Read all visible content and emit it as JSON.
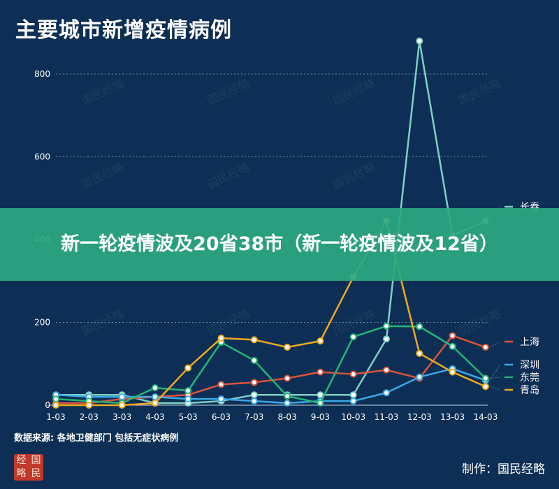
{
  "chart_data": {
    "type": "line",
    "title": "主要城市新增疫情病例",
    "categories": [
      "1-03",
      "2-03",
      "3-03",
      "4-03",
      "5-03",
      "6-03",
      "7-03",
      "8-03",
      "9-03",
      "10-03",
      "11-03",
      "12-03",
      "13-03",
      "14-03"
    ],
    "yticks": [
      0,
      200,
      400,
      600,
      800
    ],
    "ylim": [
      0,
      900
    ],
    "grid": "dashed-horizontal",
    "legend": "right",
    "series": [
      {
        "name": "长春",
        "color": "#7fcfc4",
        "values": [
          25,
          25,
          25,
          5,
          5,
          10,
          25,
          25,
          25,
          25,
          160,
          880,
          410,
          445
        ]
      },
      {
        "name": "上海",
        "color": "#d9533c",
        "values": [
          5,
          5,
          15,
          20,
          25,
          50,
          55,
          65,
          80,
          75,
          85,
          65,
          168,
          140
        ]
      },
      {
        "name": "深圳",
        "color": "#39a9e8",
        "values": [
          25,
          20,
          20,
          20,
          15,
          15,
          10,
          5,
          10,
          10,
          30,
          68,
          88,
          60
        ]
      },
      {
        "name": "东莞",
        "color": "#25b577",
        "values": [
          15,
          10,
          5,
          42,
          35,
          152,
          108,
          22,
          5,
          165,
          191,
          190,
          142,
          65
        ]
      },
      {
        "name": "青岛",
        "color": "#f0a91f",
        "values": [
          0,
          0,
          0,
          5,
          90,
          162,
          158,
          140,
          155,
          310,
          445,
          125,
          80,
          45
        ]
      }
    ]
  },
  "banner": "新一轮疫情波及20省38市（新一轮疫情波及12省）",
  "watermark": "国民经略",
  "footer": {
    "source": "数据来源: 各地卫健部门 包括无症状病例",
    "seal_chars": [
      "经",
      "国",
      "略",
      "民"
    ],
    "credit": "制作：国民经略"
  }
}
